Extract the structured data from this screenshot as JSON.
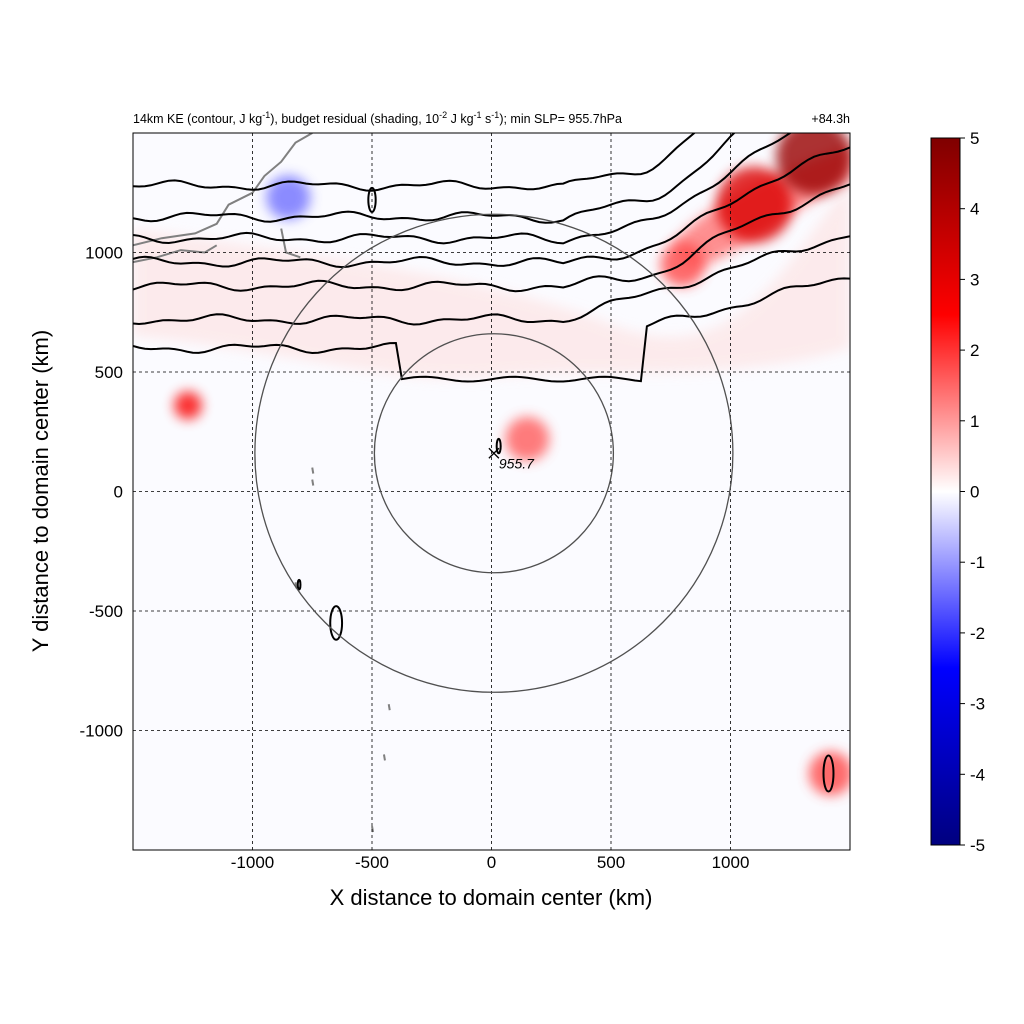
{
  "chart_data": {
    "type": "heatmap",
    "title_parts": {
      "pre": "14km KE (contour, J kg",
      "sup1": "-1",
      "mid1": "), budget residual (shading, 10",
      "sup2": "-2",
      "mid2": " J kg",
      "sup3": "-1",
      "mid3": " s",
      "sup4": "-1",
      "post": "); min SLP= 955.7hPa"
    },
    "time_label": "+84.3h",
    "xlabel": "X distance to domain center (km)",
    "ylabel": "Y distance to domain center (km)",
    "xlim": [
      -1500,
      1500
    ],
    "ylim": [
      -1500,
      1500
    ],
    "xticks": [
      -1000,
      -500,
      0,
      500,
      1000
    ],
    "yticks": [
      -1000,
      -500,
      0,
      500,
      1000
    ],
    "grid": true,
    "colorbar": {
      "min": -5,
      "max": 5,
      "ticks": [
        5,
        4,
        3,
        2,
        1,
        0,
        -1,
        -2,
        -3,
        -4,
        -5
      ],
      "colors": [
        "#00007f",
        "#0000ff",
        "#ffffff",
        "#ff0000",
        "#7f0000"
      ]
    },
    "storm_center": {
      "x": 10,
      "y": 160,
      "min_slp_label": "955.7"
    },
    "range_rings_km": [
      500,
      1000
    ],
    "ke_contours_y_at_x_minus1500": [
      600,
      720,
      860,
      960,
      1060,
      1150,
      1280
    ],
    "shading_features": [
      {
        "x": 1100,
        "y": 1200,
        "value": 3.2
      },
      {
        "x": 1350,
        "y": 1400,
        "value": 4.5
      },
      {
        "x": 800,
        "y": 950,
        "value": 1.8
      },
      {
        "x": -1270,
        "y": 360,
        "value": 2.6
      },
      {
        "x": 150,
        "y": 220,
        "value": 1.6
      },
      {
        "x": -850,
        "y": 1230,
        "value": -1.4
      },
      {
        "x": 1420,
        "y": -1180,
        "value": 1.8
      }
    ]
  }
}
